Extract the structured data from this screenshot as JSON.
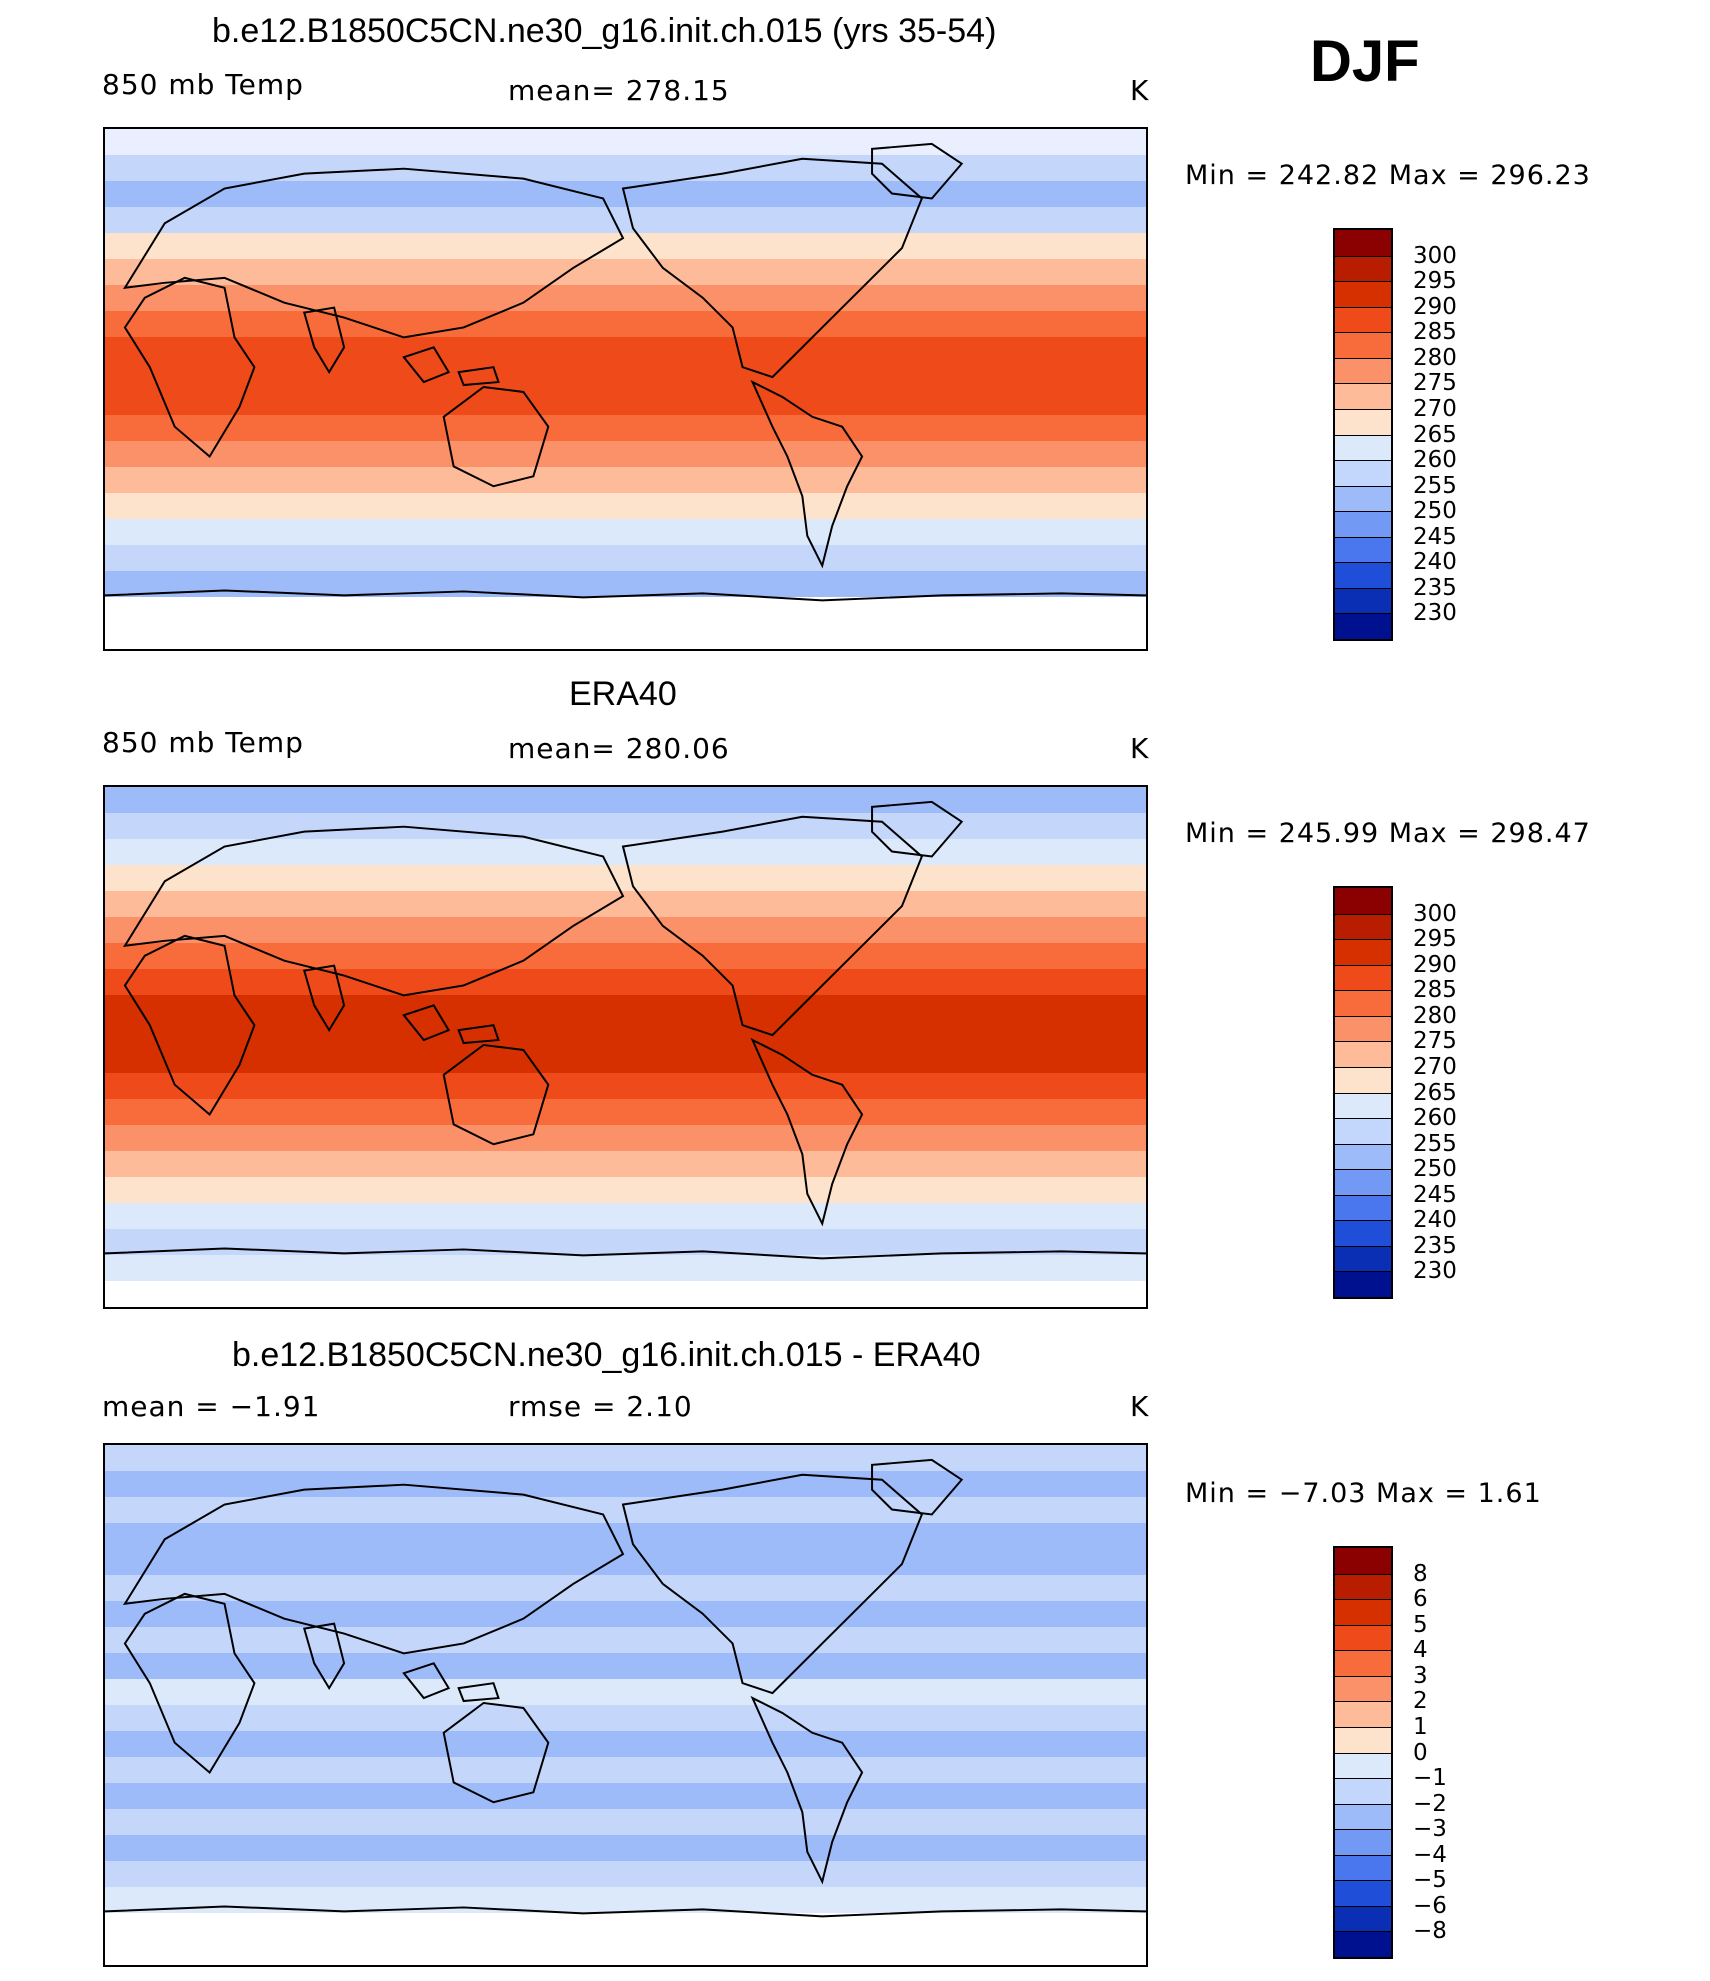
{
  "season": "DJF",
  "panels": [
    {
      "id": "model",
      "title": "b.e12.B1850C5CN.ne30_g16.init.ch.015 (yrs 35-54)",
      "left_label": "850 mb Temp",
      "center_label": "mean=  278.15",
      "units": "K",
      "stats": "Min  =  242.82  Max  =  296.23",
      "colorbar": {
        "labels": [
          "300",
          "295",
          "290",
          "285",
          "280",
          "275",
          "270",
          "265",
          "260",
          "255",
          "250",
          "245",
          "240",
          "235",
          "230"
        ],
        "colors": [
          "#8b0000",
          "#b81d00",
          "#d63000",
          "#ef4a1a",
          "#f86b3a",
          "#fb9168",
          "#fdbb99",
          "#fde3cc",
          "#dbe9fb",
          "#c2d7fb",
          "#9dbaf9",
          "#729af4",
          "#4a77ee",
          "#1f4fd9",
          "#0a2fb5",
          "#00118f"
        ]
      },
      "bands": [
        "#e9efff",
        "#c5d6fb",
        "#9dbaf9",
        "#c5d6fb",
        "#fde3cc",
        "#fdbb99",
        "#fb9168",
        "#f86b3a",
        "#ef4a1a",
        "#ef4a1a",
        "#ef4a1a",
        "#f86b3a",
        "#fb9168",
        "#fdbb99",
        "#fde3cc",
        "#dbe9fb",
        "#c5d6fb",
        "#9dbaf9",
        "#ffffff",
        "#ffffff"
      ]
    },
    {
      "id": "obs",
      "title": "ERA40",
      "left_label": "850 mb Temp",
      "center_label": "mean=  280.06",
      "units": "K",
      "stats": "Min  =  245.99  Max  =  298.47",
      "colorbar": {
        "labels": [
          "300",
          "295",
          "290",
          "285",
          "280",
          "275",
          "270",
          "265",
          "260",
          "255",
          "250",
          "245",
          "240",
          "235",
          "230"
        ],
        "colors": [
          "#8b0000",
          "#b81d00",
          "#d63000",
          "#ef4a1a",
          "#f86b3a",
          "#fb9168",
          "#fdbb99",
          "#fde3cc",
          "#dbe9fb",
          "#c2d7fb",
          "#9dbaf9",
          "#729af4",
          "#4a77ee",
          "#1f4fd9",
          "#0a2fb5",
          "#00118f"
        ]
      },
      "bands": [
        "#9dbaf9",
        "#c5d6fb",
        "#dbe9fb",
        "#fde3cc",
        "#fdbb99",
        "#fb9168",
        "#f86b3a",
        "#ef4a1a",
        "#d63000",
        "#d63000",
        "#d63000",
        "#ef4a1a",
        "#f86b3a",
        "#fb9168",
        "#fdbb99",
        "#fde3cc",
        "#dbe9fb",
        "#c5d6fb",
        "#dbe9fb",
        "#ffffff"
      ]
    },
    {
      "id": "diff",
      "title": "b.e12.B1850C5CN.ne30_g16.init.ch.015 - ERA40",
      "left_label": "mean =   −1.91",
      "center_label": "rmse =     2.10",
      "units": "K",
      "stats": "Min  =   −7.03  Max  =     1.61",
      "colorbar": {
        "labels": [
          "8",
          "6",
          "5",
          "4",
          "3",
          "2",
          "1",
          "0",
          "−1",
          "−2",
          "−3",
          "−4",
          "−5",
          "−6",
          "−8"
        ],
        "colors": [
          "#8b0000",
          "#b81d00",
          "#d63000",
          "#ef4a1a",
          "#f86b3a",
          "#fb9168",
          "#fdbb99",
          "#fde3cc",
          "#dbe9fb",
          "#c2d7fb",
          "#9dbaf9",
          "#729af4",
          "#4a77ee",
          "#1f4fd9",
          "#0a2fb5",
          "#00118f"
        ]
      },
      "bands": [
        "#c5d6fb",
        "#9dbaf9",
        "#c5d6fb",
        "#9dbaf9",
        "#9dbaf9",
        "#c5d6fb",
        "#9dbaf9",
        "#c5d6fb",
        "#9dbaf9",
        "#dbe9fb",
        "#c5d6fb",
        "#9dbaf9",
        "#c5d6fb",
        "#9dbaf9",
        "#c5d6fb",
        "#9dbaf9",
        "#c5d6fb",
        "#dbe9fb",
        "#ffffff",
        "#ffffff"
      ]
    }
  ]
}
